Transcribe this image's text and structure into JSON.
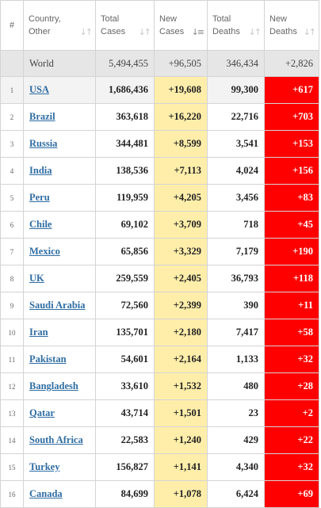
{
  "headers": {
    "index": "#",
    "country": [
      "Country,",
      "Other"
    ],
    "total_cases": [
      "Total",
      "Cases"
    ],
    "new_cases": [
      "New",
      "Cases"
    ],
    "total_deaths": [
      "Total",
      "Deaths"
    ],
    "new_deaths": [
      "New",
      "Deaths"
    ],
    "sort_icon": "↓↑",
    "sort_icon_active": "↓≡"
  },
  "world": {
    "country": "World",
    "total_cases": "5,494,455",
    "new_cases": "+96,505",
    "total_deaths": "346,434",
    "new_deaths": "+2,826"
  },
  "rows": [
    {
      "index": "1",
      "country": "USA",
      "total_cases": "1,686,436",
      "new_cases": "+19,608",
      "total_deaths": "99,300",
      "new_deaths": "+617"
    },
    {
      "index": "2",
      "country": "Brazil",
      "total_cases": "363,618",
      "new_cases": "+16,220",
      "total_deaths": "22,716",
      "new_deaths": "+703"
    },
    {
      "index": "3",
      "country": "Russia",
      "total_cases": "344,481",
      "new_cases": "+8,599",
      "total_deaths": "3,541",
      "new_deaths": "+153"
    },
    {
      "index": "4",
      "country": "India",
      "total_cases": "138,536",
      "new_cases": "+7,113",
      "total_deaths": "4,024",
      "new_deaths": "+156"
    },
    {
      "index": "5",
      "country": "Peru",
      "total_cases": "119,959",
      "new_cases": "+4,205",
      "total_deaths": "3,456",
      "new_deaths": "+83"
    },
    {
      "index": "6",
      "country": "Chile",
      "total_cases": "69,102",
      "new_cases": "+3,709",
      "total_deaths": "718",
      "new_deaths": "+45"
    },
    {
      "index": "7",
      "country": "Mexico",
      "total_cases": "65,856",
      "new_cases": "+3,329",
      "total_deaths": "7,179",
      "new_deaths": "+190"
    },
    {
      "index": "8",
      "country": "UK",
      "total_cases": "259,559",
      "new_cases": "+2,405",
      "total_deaths": "36,793",
      "new_deaths": "+118"
    },
    {
      "index": "9",
      "country": "Saudi Arabia",
      "total_cases": "72,560",
      "new_cases": "+2,399",
      "total_deaths": "390",
      "new_deaths": "+11"
    },
    {
      "index": "10",
      "country": "Iran",
      "total_cases": "135,701",
      "new_cases": "+2,180",
      "total_deaths": "7,417",
      "new_deaths": "+58"
    },
    {
      "index": "11",
      "country": "Pakistan",
      "total_cases": "54,601",
      "new_cases": "+2,164",
      "total_deaths": "1,133",
      "new_deaths": "+32"
    },
    {
      "index": "12",
      "country": "Bangladesh",
      "total_cases": "33,610",
      "new_cases": "+1,532",
      "total_deaths": "480",
      "new_deaths": "+28"
    },
    {
      "index": "13",
      "country": "Qatar",
      "total_cases": "43,714",
      "new_cases": "+1,501",
      "total_deaths": "23",
      "new_deaths": "+2"
    },
    {
      "index": "14",
      "country": "South Africa",
      "total_cases": "22,583",
      "new_cases": "+1,240",
      "total_deaths": "429",
      "new_deaths": "+22"
    },
    {
      "index": "15",
      "country": "Turkey",
      "total_cases": "156,827",
      "new_cases": "+1,141",
      "total_deaths": "4,340",
      "new_deaths": "+32"
    },
    {
      "index": "16",
      "country": "Canada",
      "total_cases": "84,699",
      "new_cases": "+1,078",
      "total_deaths": "6,424",
      "new_deaths": "+69"
    }
  ],
  "colors": {
    "new_cases_bg": "#ffeeaa",
    "new_deaths_bg": "#ff0000",
    "world_row_bg": "#e6e6e6",
    "link": "#2f6da3"
  }
}
